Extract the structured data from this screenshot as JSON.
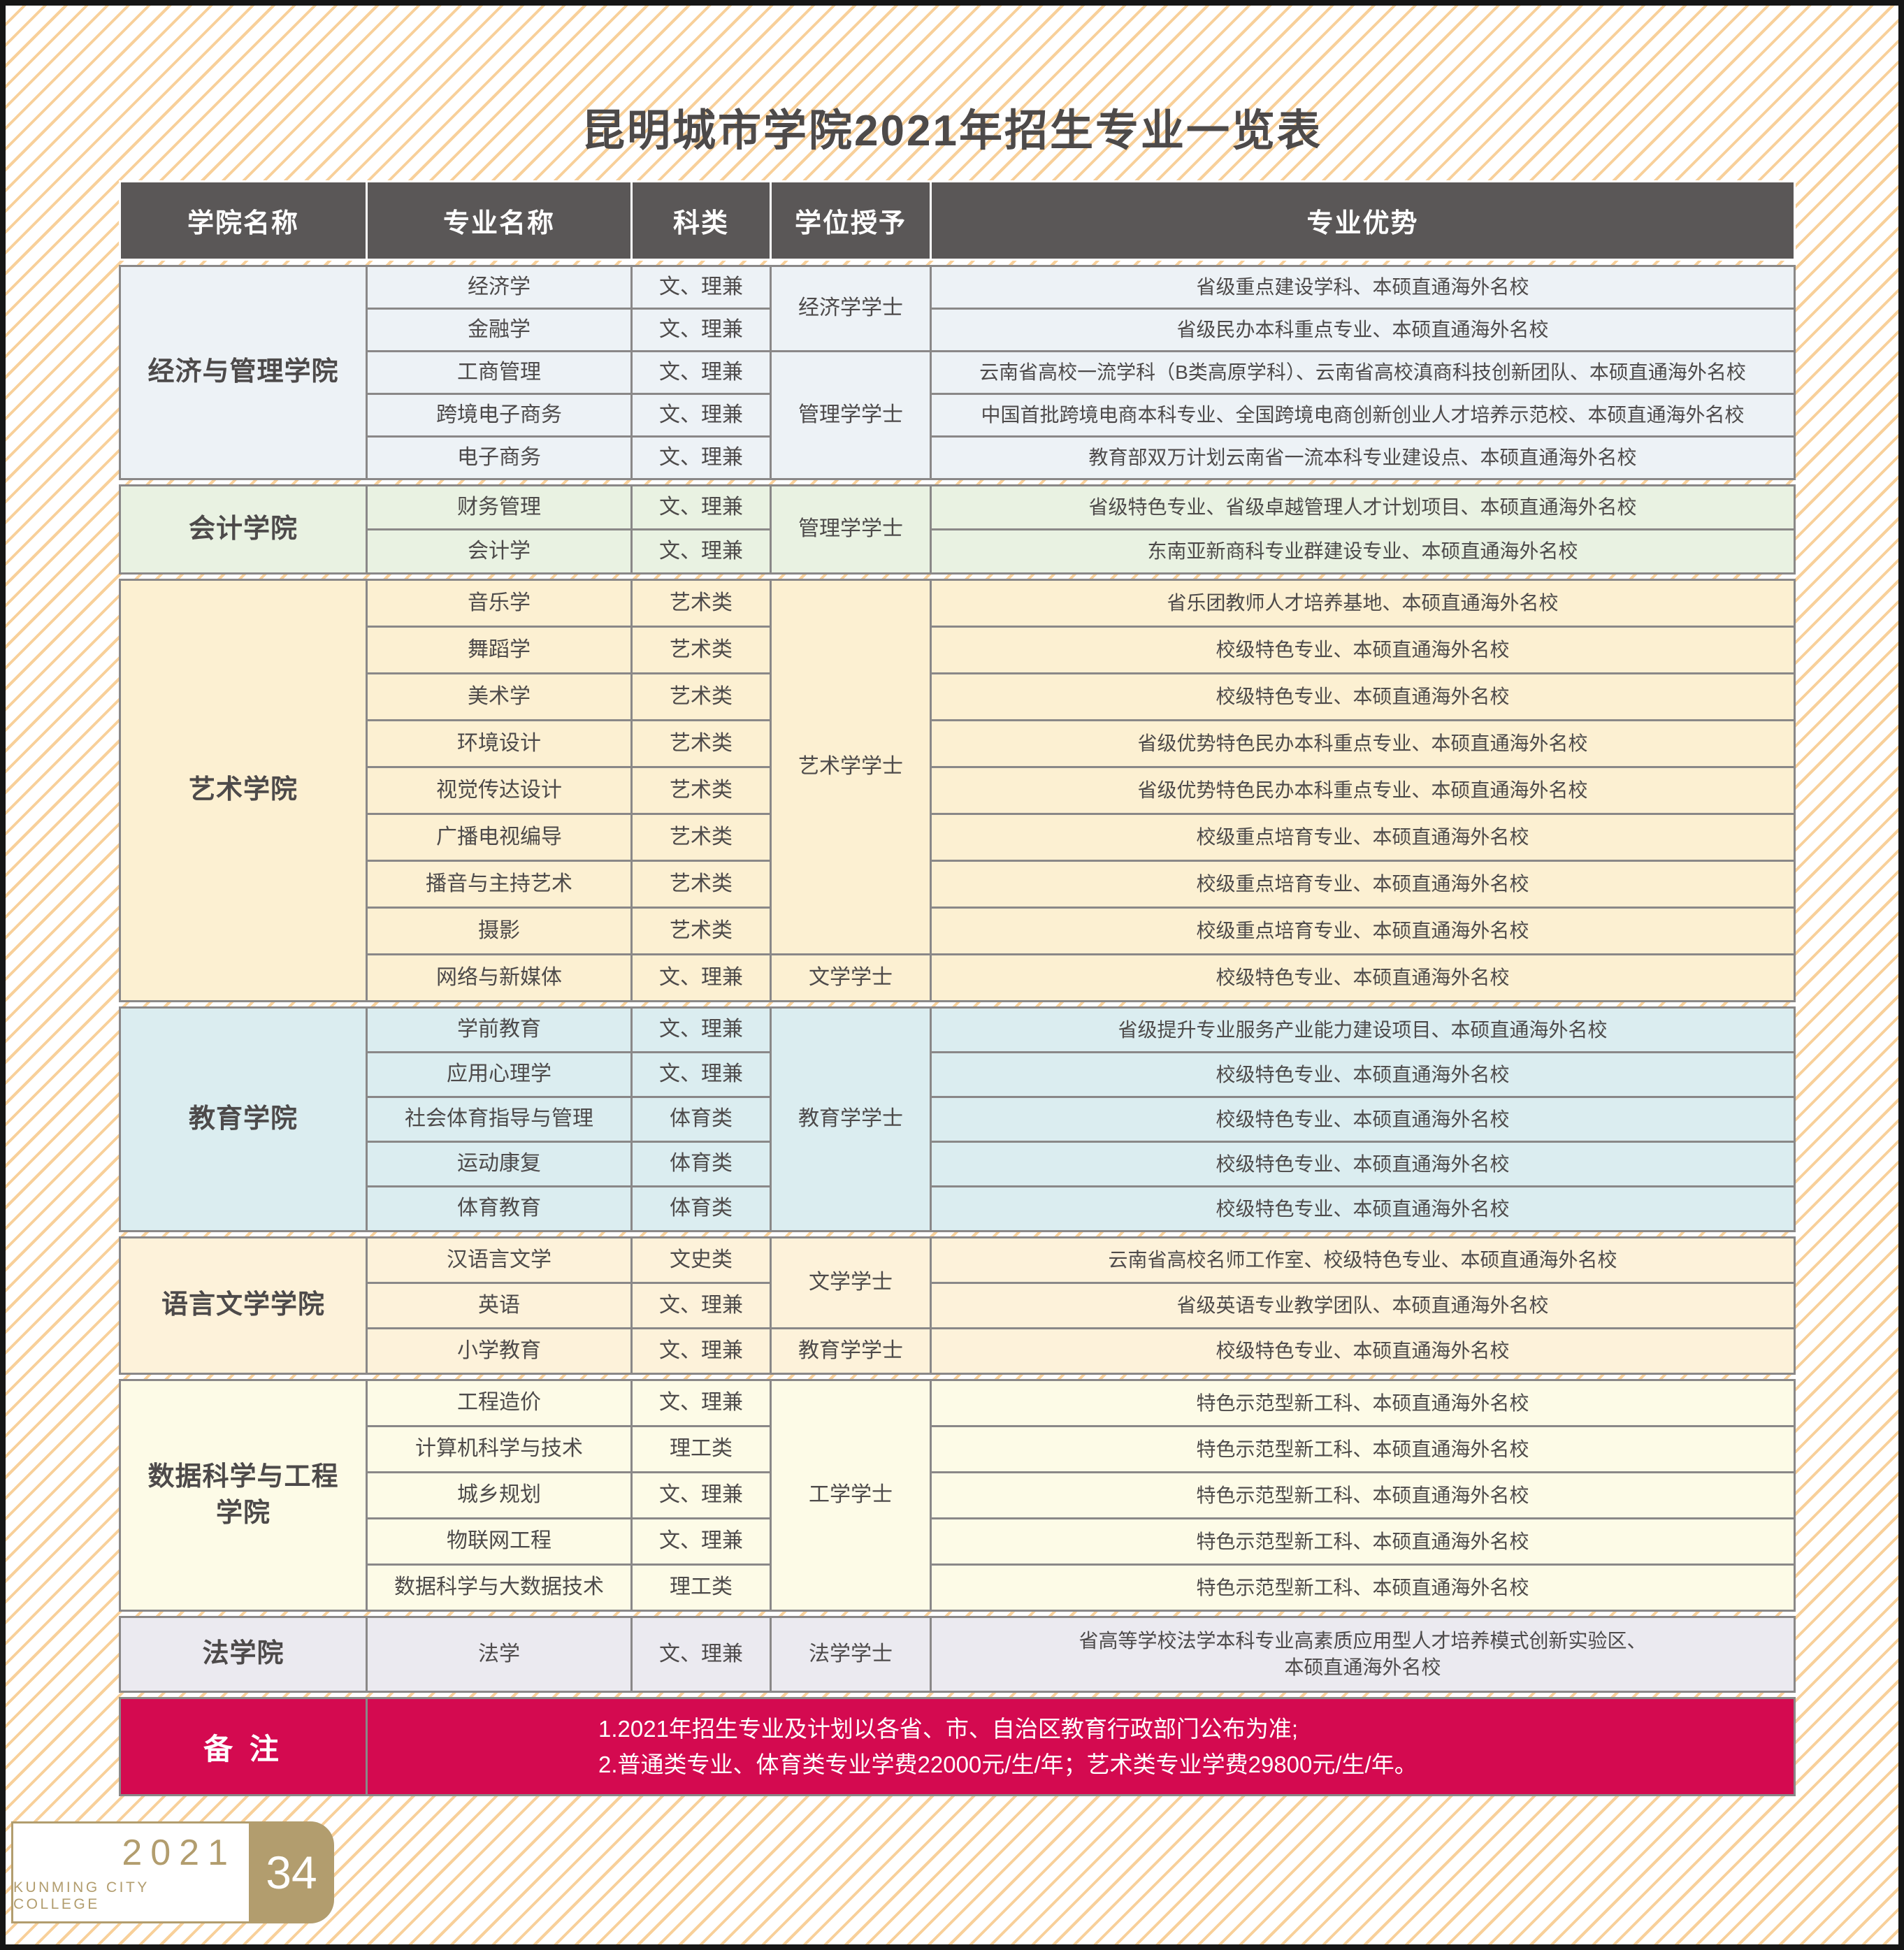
{
  "title": "昆明城市学院2021年招生专业一览表",
  "colors": {
    "header_bg": "#5a5757",
    "grid_line": "#8a8888",
    "stripe": "#f8d09a",
    "remark_bg": "#d40a50",
    "badge_gold": "#b29d6e",
    "text": "#4d4a4a"
  },
  "table": {
    "headers": [
      "学院名称",
      "专业名称",
      "科类",
      "学位授予",
      "专业优势"
    ],
    "sections": [
      {
        "college": "经济与管理学院",
        "color": "#edf2f6",
        "rows": [
          {
            "major": "经济学",
            "category": "文、理兼",
            "advantage": "省级重点建设学科、本硕直通海外名校"
          },
          {
            "major": "金融学",
            "category": "文、理兼",
            "advantage": "省级民办本科重点专业、本硕直通海外名校"
          },
          {
            "major": "工商管理",
            "category": "文、理兼",
            "advantage": "云南省高校一流学科（B类高原学科）、云南省高校滇商科技创新团队、本硕直通海外名校"
          },
          {
            "major": "跨境电子商务",
            "category": "文、理兼",
            "advantage": "中国首批跨境电商本科专业、全国跨境电商创新创业人才培养示范校、本硕直通海外名校"
          },
          {
            "major": "电子商务",
            "category": "文、理兼",
            "advantage": "教育部双万计划云南省一流本科专业建设点、本硕直通海外名校"
          }
        ],
        "degrees": [
          {
            "label": "经济学学士",
            "start": 1,
            "span": 2
          },
          {
            "label": "管理学学士",
            "start": 3,
            "span": 3
          }
        ]
      },
      {
        "college": "会计学院",
        "color": "#e9f2e2",
        "rows": [
          {
            "major": "财务管理",
            "category": "文、理兼",
            "advantage": "省级特色专业、省级卓越管理人才计划项目、本硕直通海外名校"
          },
          {
            "major": "会计学",
            "category": "文、理兼",
            "advantage": "东南亚新商科专业群建设专业、本硕直通海外名校"
          }
        ],
        "degrees": [
          {
            "label": "管理学学士",
            "start": 1,
            "span": 2
          }
        ]
      },
      {
        "college": "艺术学院",
        "color": "#fcf0d2",
        "rows": [
          {
            "major": "音乐学",
            "category": "艺术类",
            "advantage": "省乐团教师人才培养基地、本硕直通海外名校"
          },
          {
            "major": "舞蹈学",
            "category": "艺术类",
            "advantage": "校级特色专业、本硕直通海外名校"
          },
          {
            "major": "美术学",
            "category": "艺术类",
            "advantage": "校级特色专业、本硕直通海外名校"
          },
          {
            "major": "环境设计",
            "category": "艺术类",
            "advantage": "省级优势特色民办本科重点专业、本硕直通海外名校"
          },
          {
            "major": "视觉传达设计",
            "category": "艺术类",
            "advantage": "省级优势特色民办本科重点专业、本硕直通海外名校"
          },
          {
            "major": "广播电视编导",
            "category": "艺术类",
            "advantage": "校级重点培育专业、本硕直通海外名校"
          },
          {
            "major": "播音与主持艺术",
            "category": "艺术类",
            "advantage": "校级重点培育专业、本硕直通海外名校"
          },
          {
            "major": "摄影",
            "category": "艺术类",
            "advantage": "校级重点培育专业、本硕直通海外名校"
          },
          {
            "major": "网络与新媒体",
            "category": "文、理兼",
            "advantage": "校级特色专业、本硕直通海外名校"
          }
        ],
        "degrees": [
          {
            "label": "艺术学学士",
            "start": 1,
            "span": 8
          },
          {
            "label": "文学学士",
            "start": 9,
            "span": 1
          }
        ]
      },
      {
        "college": "教育学院",
        "color": "#dbedf0",
        "rows": [
          {
            "major": "学前教育",
            "category": "文、理兼",
            "advantage": "省级提升专业服务产业能力建设项目、本硕直通海外名校"
          },
          {
            "major": "应用心理学",
            "category": "文、理兼",
            "advantage": "校级特色专业、本硕直通海外名校"
          },
          {
            "major": "社会体育指导与管理",
            "category": "体育类",
            "advantage": "校级特色专业、本硕直通海外名校"
          },
          {
            "major": "运动康复",
            "category": "体育类",
            "advantage": "校级特色专业、本硕直通海外名校"
          },
          {
            "major": "体育教育",
            "category": "体育类",
            "advantage": "校级特色专业、本硕直通海外名校"
          }
        ],
        "degrees": [
          {
            "label": "教育学学士",
            "start": 1,
            "span": 5
          }
        ]
      },
      {
        "college": "语言文学学院",
        "color": "#fdf2da",
        "rows": [
          {
            "major": "汉语言文学",
            "category": "文史类",
            "advantage": "云南省高校名师工作室、校级特色专业、本硕直通海外名校"
          },
          {
            "major": "英语",
            "category": "文、理兼",
            "advantage": "省级英语专业教学团队、本硕直通海外名校"
          },
          {
            "major": "小学教育",
            "category": "文、理兼",
            "advantage": "校级特色专业、本硕直通海外名校"
          }
        ],
        "degrees": [
          {
            "label": "文学学士",
            "start": 1,
            "span": 2
          },
          {
            "label": "教育学学士",
            "start": 3,
            "span": 1
          }
        ]
      },
      {
        "college": "数据科学与工程\n学院",
        "color": "#fdfbe7",
        "rows": [
          {
            "major": "工程造价",
            "category": "文、理兼",
            "advantage": "特色示范型新工科、本硕直通海外名校"
          },
          {
            "major": "计算机科学与技术",
            "category": "理工类",
            "advantage": "特色示范型新工科、本硕直通海外名校"
          },
          {
            "major": "城乡规划",
            "category": "文、理兼",
            "advantage": "特色示范型新工科、本硕直通海外名校"
          },
          {
            "major": "物联网工程",
            "category": "文、理兼",
            "advantage": "特色示范型新工科、本硕直通海外名校"
          },
          {
            "major": "数据科学与大数据技术",
            "category": "理工类",
            "advantage": "特色示范型新工科、本硕直通海外名校"
          }
        ],
        "degrees": [
          {
            "label": "工学学士",
            "start": 1,
            "span": 5
          }
        ]
      },
      {
        "college": "法学院",
        "color": "#ebeaf0",
        "rows": [
          {
            "major": "法学",
            "category": "文、理兼",
            "advantage": "省高等学校法学本科专业高素质应用型人才培养模式创新实验区、\n本硕直通海外名校"
          }
        ],
        "degrees": [
          {
            "label": "法学学士",
            "start": 1,
            "span": 1
          }
        ]
      }
    ],
    "remark": {
      "label": "备 注",
      "lines": [
        "1.2021年招生专业及计划以各省、市、自治区教育行政部门公布为准;",
        "2.普通类专业、体育类专业学费22000元/生/年；艺术类专业学费29800元/生/年。"
      ]
    }
  },
  "footer": {
    "year": "2021",
    "college_en": "KUNMING CITY COLLEGE",
    "page": "34"
  }
}
